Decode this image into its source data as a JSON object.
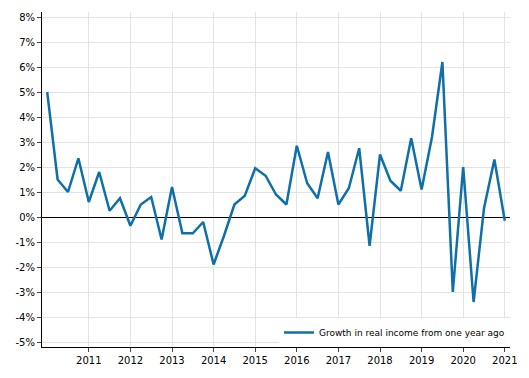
{
  "chart_data": {
    "type": "line",
    "categories": [
      null,
      null,
      null,
      null,
      "2011",
      null,
      null,
      null,
      "2012",
      null,
      null,
      null,
      "2013",
      null,
      null,
      null,
      "2014",
      null,
      null,
      null,
      "2015",
      null,
      null,
      null,
      "2016",
      null,
      null,
      null,
      "2017",
      null,
      null,
      null,
      "2018",
      null,
      null,
      null,
      "2019",
      null,
      null,
      null,
      "2020",
      null,
      null,
      null,
      "2021"
    ],
    "series": [
      {
        "name": "Growth in real income from one year ago",
        "color": "#0f6fa8",
        "values": [
          5.0,
          1.5,
          1.0,
          2.35,
          0.6,
          1.8,
          0.25,
          0.75,
          -0.35,
          0.5,
          0.8,
          -0.9,
          1.2,
          -0.65,
          -0.65,
          -0.2,
          -1.9,
          -0.75,
          0.5,
          0.85,
          1.95,
          1.65,
          0.9,
          0.5,
          2.85,
          1.35,
          0.75,
          2.6,
          0.5,
          1.15,
          2.75,
          -1.15,
          2.5,
          1.45,
          1.05,
          3.15,
          1.1,
          3.2,
          6.2,
          -3.0,
          2.0,
          -3.4,
          0.35,
          2.3,
          -0.15
        ]
      }
    ],
    "ylim": [
      -5.2,
      8.2
    ],
    "yticks": [
      {
        "value": -5,
        "label": "-5%"
      },
      {
        "value": -4,
        "label": "-4%"
      },
      {
        "value": -3,
        "label": "-3%"
      },
      {
        "value": -2,
        "label": "-2%"
      },
      {
        "value": -1,
        "label": "-1%"
      },
      {
        "value": 0,
        "label": "0%"
      },
      {
        "value": 1,
        "label": "1%"
      },
      {
        "value": 2,
        "label": "2%"
      },
      {
        "value": 3,
        "label": "3%"
      },
      {
        "value": 4,
        "label": "4%"
      },
      {
        "value": 5,
        "label": "5%"
      },
      {
        "value": 6,
        "label": "6%"
      },
      {
        "value": 7,
        "label": "7%"
      },
      {
        "value": 8,
        "label": "8%"
      }
    ],
    "grid": true,
    "legend": "lower right"
  }
}
